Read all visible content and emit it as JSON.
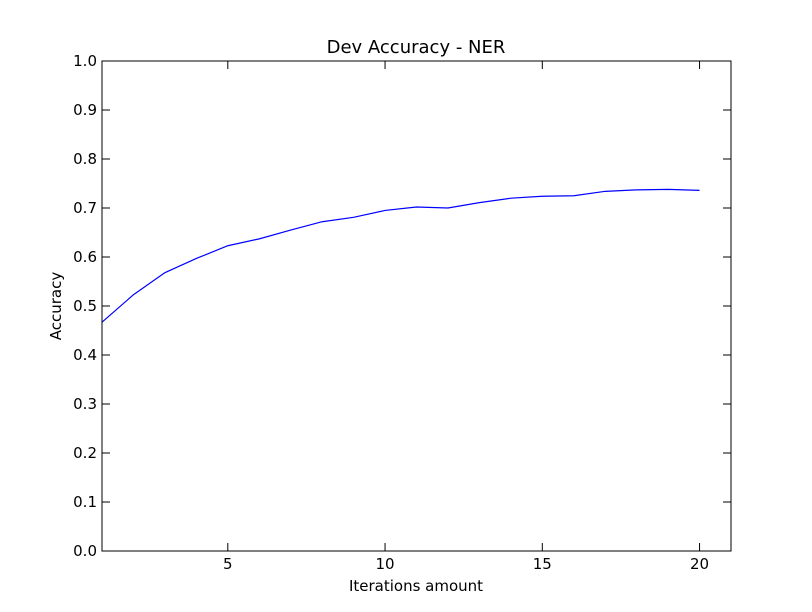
{
  "chart_data": {
    "type": "line",
    "title": "Dev Accuracy - NER",
    "xlabel": "Iterations amount",
    "ylabel": "Accuracy",
    "xlim": [
      1,
      21
    ],
    "ylim": [
      0.0,
      1.0
    ],
    "xticks": [
      5,
      10,
      15,
      20
    ],
    "yticks": [
      0.0,
      0.1,
      0.2,
      0.3,
      0.4,
      0.5,
      0.6,
      0.7,
      0.8,
      0.9,
      1.0
    ],
    "grid": false,
    "series": [
      {
        "color": "#0000ff",
        "x": [
          1,
          2,
          3,
          4,
          5,
          6,
          7,
          8,
          9,
          10,
          11,
          12,
          13,
          14,
          15,
          16,
          17,
          18,
          19,
          20
        ],
        "y": [
          0.467,
          0.523,
          0.568,
          0.597,
          0.623,
          0.637,
          0.655,
          0.672,
          0.681,
          0.695,
          0.702,
          0.7,
          0.711,
          0.72,
          0.724,
          0.725,
          0.734,
          0.737,
          0.738,
          0.736
        ]
      }
    ]
  }
}
